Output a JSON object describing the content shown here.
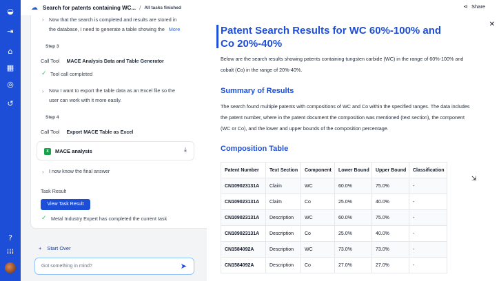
{
  "header": {
    "title": "Search for patents containing WC...",
    "separator": "/",
    "status": "All tasks finished",
    "share_label": "Share"
  },
  "rail": {
    "icons": [
      "logo-icon",
      "collapse-icon",
      "home-icon",
      "dashboard-icon",
      "radar-icon",
      "history-icon",
      "help-icon",
      "apps-icon"
    ]
  },
  "left": {
    "intro_text_1": "Now that the search is completed and results are stored in",
    "intro_text_2": "the database, I need to generate a table showing the",
    "more_label": "More",
    "step3": "Step 3",
    "call_tool_label": "Call Tool",
    "step3_tool": "MACE Analysis Data and Table Generator",
    "tool_call_completed": "Tool call completed",
    "export_text_1": "Now I want to export the table data as an Excel file so the",
    "export_text_2": "user can work with it more easily.",
    "step4": "Step 4",
    "step4_tool": "Export MACE Table as Excel",
    "file_name": "MACE analysis",
    "final_answer": "I now know the final answer",
    "task_result_label": "Task Result",
    "view_result_button": "View Task Result",
    "expert_status": "Metal Industry Expert has completed the current task",
    "start_over": "Start Over",
    "input_placeholder": "Got something in mind?"
  },
  "doc": {
    "title": "Patent Search Results for WC 60%-100% and Co 20%-40%",
    "intro_1": "Below are the search results showing patents containing tungsten carbide (WC) in the range of 60%-100% and",
    "intro_2": "cobalt (Co) in the range of 20%-40%.",
    "summary_heading": "Summary of Results",
    "summary_1": "The search found multiple patents with compositions of WC and Co within the specified ranges. The data includes",
    "summary_2": "the patent number, where in the patent document the composition was mentioned (text section), the component",
    "summary_3": "(WC or Co), and the lower and upper bounds of the composition percentage.",
    "table_heading": "Composition Table",
    "columns": [
      "Patent Number",
      "Text Section",
      "Component",
      "Lower Bound",
      "Upper Bound",
      "Classification"
    ],
    "rows": [
      [
        "CN109023131A",
        "Claim",
        "WC",
        "60.0%",
        "75.0%",
        "-"
      ],
      [
        "CN109023131A",
        "Claim",
        "Co",
        "25.0%",
        "40.0%",
        "-"
      ],
      [
        "CN109023131A",
        "Description",
        "WC",
        "60.0%",
        "75.0%",
        "-"
      ],
      [
        "CN109023131A",
        "Description",
        "Co",
        "25.0%",
        "40.0%",
        "-"
      ],
      [
        "CN1584092A",
        "Description",
        "WC",
        "73.0%",
        "73.0%",
        "-"
      ],
      [
        "CN1584092A",
        "Description",
        "Co",
        "27.0%",
        "27.0%",
        "-"
      ]
    ]
  },
  "colors": {
    "accent": "#1d4ed8",
    "success": "#22c55e",
    "excel": "#16a34a"
  }
}
